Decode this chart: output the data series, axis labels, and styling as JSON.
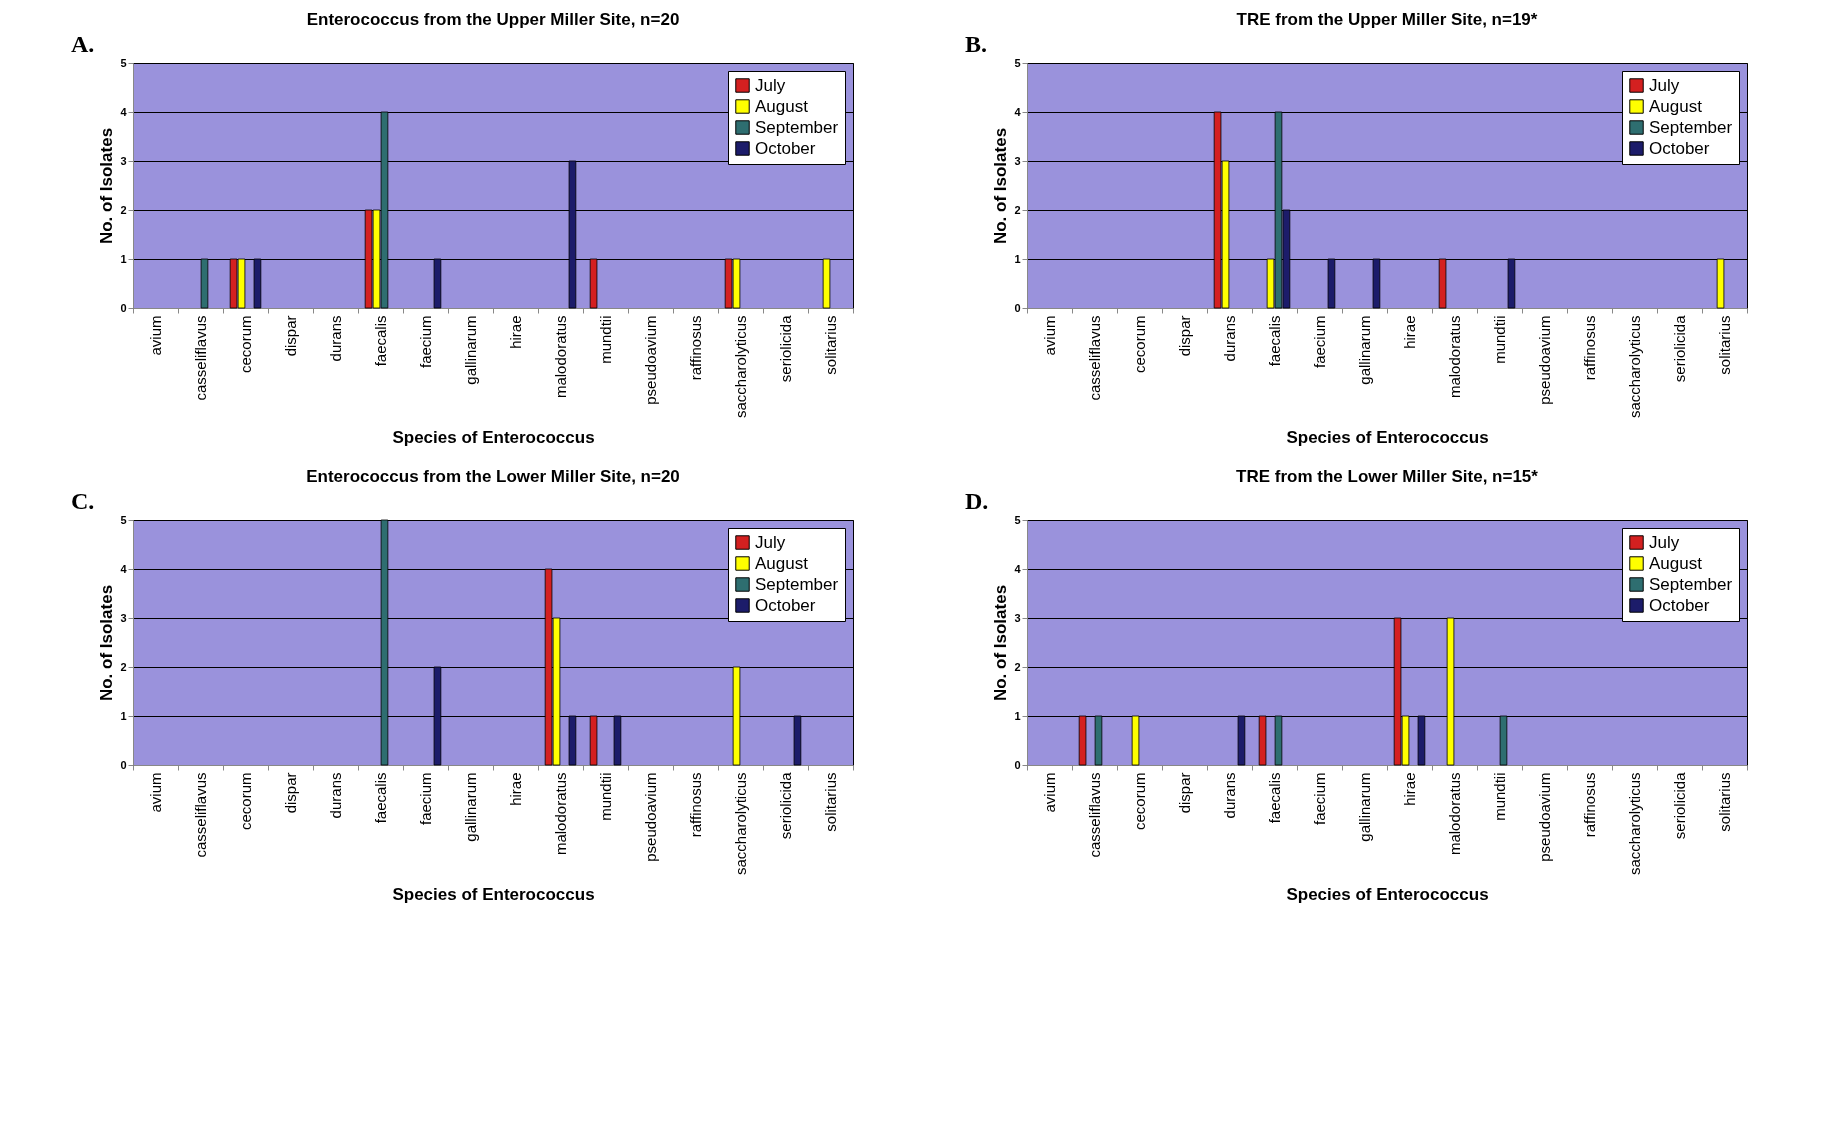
{
  "chart_data": [
    {
      "type": "bar",
      "title": "Enterococcus from the Upper Miller Site, n=20",
      "xlabel": "Species of Enterococcus",
      "ylabel": "No. of Isolates",
      "annotations": [
        "A."
      ],
      "categories": [
        "avium",
        "casseliflavus",
        "cecorum",
        "dispar",
        "durans",
        "faecalis",
        "faecium",
        "gallinarum",
        "hirae",
        "malodoratus",
        "mundtii",
        "pseudoavium",
        "raffinosus",
        "saccharolyticus",
        "seriolicida",
        "solitarius"
      ],
      "ylim": [
        0,
        5
      ],
      "yticks": [
        0,
        1,
        2,
        3,
        4,
        5
      ],
      "grid": "y",
      "legend": "top right",
      "series": [
        {
          "name": "July",
          "color": "#d42020",
          "values": [
            0,
            0,
            1,
            0,
            0,
            2,
            0,
            0,
            0,
            0,
            1,
            0,
            0,
            1,
            0,
            0
          ]
        },
        {
          "name": "August",
          "color": "#ffff00",
          "values": [
            0,
            0,
            1,
            0,
            0,
            2,
            0,
            0,
            0,
            0,
            0,
            0,
            0,
            1,
            0,
            1
          ]
        },
        {
          "name": "September",
          "color": "#2e6e70",
          "values": [
            0,
            1,
            0,
            0,
            0,
            4,
            0,
            0,
            0,
            0,
            0,
            0,
            0,
            0,
            0,
            0
          ]
        },
        {
          "name": "October",
          "color": "#1c1c6a",
          "values": [
            0,
            0,
            1,
            0,
            0,
            0,
            1,
            0,
            0,
            3,
            0,
            0,
            0,
            0,
            0,
            0
          ]
        }
      ]
    },
    {
      "type": "bar",
      "title": "TRE from the Upper Miller Site, n=19*",
      "xlabel": "Species of Enterococcus",
      "ylabel": "No. of Isolates",
      "annotations": [
        "B."
      ],
      "categories": [
        "avium",
        "casseliflavus",
        "cecorum",
        "dispar",
        "durans",
        "faecalis",
        "faecium",
        "gallinarum",
        "hirae",
        "malodoratus",
        "mundtii",
        "pseudoavium",
        "raffinosus",
        "saccharolyticus",
        "seriolicida",
        "solitarius"
      ],
      "ylim": [
        0,
        5
      ],
      "yticks": [
        0,
        1,
        2,
        3,
        4,
        5
      ],
      "grid": "y",
      "legend": "top right",
      "series": [
        {
          "name": "July",
          "color": "#d42020",
          "values": [
            0,
            0,
            0,
            0,
            4,
            0,
            0,
            0,
            0,
            1,
            0,
            0,
            0,
            0,
            0,
            0
          ]
        },
        {
          "name": "August",
          "color": "#ffff00",
          "values": [
            0,
            0,
            0,
            0,
            3,
            1,
            0,
            0,
            0,
            0,
            0,
            0,
            0,
            0,
            0,
            1
          ]
        },
        {
          "name": "September",
          "color": "#2e6e70",
          "values": [
            0,
            0,
            0,
            0,
            0,
            4,
            0,
            0,
            0,
            0,
            0,
            0,
            0,
            0,
            0,
            0
          ]
        },
        {
          "name": "October",
          "color": "#1c1c6a",
          "values": [
            0,
            0,
            0,
            0,
            0,
            2,
            1,
            1,
            0,
            0,
            1,
            0,
            0,
            0,
            0,
            0
          ]
        }
      ]
    },
    {
      "type": "bar",
      "title": "Enterococcus from the Lower Miller Site, n=20",
      "xlabel": "Species of Enterococcus",
      "ylabel": "No. of Isolates",
      "annotations": [
        "C."
      ],
      "categories": [
        "avium",
        "casseliflavus",
        "cecorum",
        "dispar",
        "durans",
        "faecalis",
        "faecium",
        "gallinarum",
        "hirae",
        "malodoratus",
        "mundtii",
        "pseudoavium",
        "raffinosus",
        "saccharolyticus",
        "seriolicida",
        "solitarius"
      ],
      "ylim": [
        0,
        5
      ],
      "yticks": [
        0,
        1,
        2,
        3,
        4,
        5
      ],
      "grid": "y",
      "legend": "top right",
      "series": [
        {
          "name": "July",
          "color": "#d42020",
          "values": [
            0,
            0,
            0,
            0,
            0,
            0,
            0,
            0,
            0,
            4,
            1,
            0,
            0,
            0,
            0,
            0
          ]
        },
        {
          "name": "August",
          "color": "#ffff00",
          "values": [
            0,
            0,
            0,
            0,
            0,
            0,
            0,
            0,
            0,
            3,
            0,
            0,
            0,
            2,
            0,
            0
          ]
        },
        {
          "name": "September",
          "color": "#2e6e70",
          "values": [
            0,
            0,
            0,
            0,
            0,
            5,
            0,
            0,
            0,
            0,
            0,
            0,
            0,
            0,
            0,
            0
          ]
        },
        {
          "name": "October",
          "color": "#1c1c6a",
          "values": [
            0,
            0,
            0,
            0,
            0,
            0,
            2,
            0,
            0,
            1,
            1,
            0,
            0,
            0,
            1,
            0
          ]
        }
      ]
    },
    {
      "type": "bar",
      "title": "TRE from the Lower Miller Site, n=15*",
      "xlabel": "Species of Enterococcus",
      "ylabel": "No. of Isolates",
      "annotations": [
        "D."
      ],
      "categories": [
        "avium",
        "casseliflavus",
        "cecorum",
        "dispar",
        "durans",
        "faecalis",
        "faecium",
        "gallinarum",
        "hirae",
        "malodoratus",
        "mundtii",
        "pseudoavium",
        "raffinosus",
        "saccharolyticus",
        "seriolicida",
        "solitarius"
      ],
      "ylim": [
        0,
        5
      ],
      "yticks": [
        0,
        1,
        2,
        3,
        4,
        5
      ],
      "grid": "y",
      "legend": "top right",
      "series": [
        {
          "name": "July",
          "color": "#d42020",
          "values": [
            0,
            1,
            0,
            0,
            0,
            1,
            0,
            0,
            3,
            0,
            0,
            0,
            0,
            0,
            0,
            0
          ]
        },
        {
          "name": "August",
          "color": "#ffff00",
          "values": [
            0,
            0,
            1,
            0,
            0,
            0,
            0,
            0,
            1,
            3,
            0,
            0,
            0,
            0,
            0,
            0
          ]
        },
        {
          "name": "September",
          "color": "#2e6e70",
          "values": [
            0,
            1,
            0,
            0,
            0,
            1,
            0,
            0,
            0,
            0,
            1,
            0,
            0,
            0,
            0,
            0
          ]
        },
        {
          "name": "October",
          "color": "#1c1c6a",
          "values": [
            0,
            0,
            0,
            0,
            1,
            0,
            0,
            0,
            1,
            0,
            0,
            0,
            0,
            0,
            0,
            0
          ]
        }
      ]
    }
  ]
}
